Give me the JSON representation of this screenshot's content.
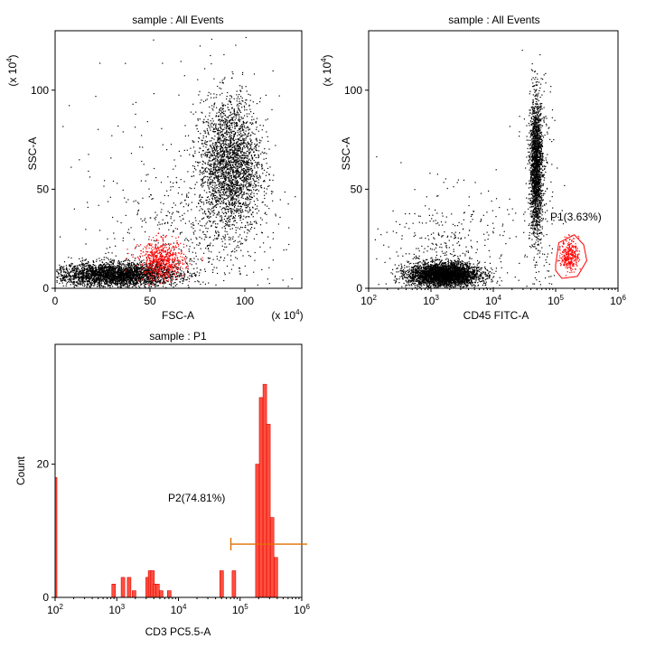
{
  "chart_data": [
    {
      "type": "scatter",
      "title": "sample : All Events",
      "xlabel": "FSC-A",
      "ylabel": "SSC-A",
      "x_scale": "linear",
      "xlim": [
        0,
        130
      ],
      "ylim": [
        0,
        130
      ],
      "x_multiplier": "(x 10",
      "y_multiplier": "(x 10",
      "multiplier_exp": "4",
      "multiplier_close": ")",
      "x_ticks": [
        {
          "v": 0,
          "label": "0"
        },
        {
          "v": 50,
          "label": "50"
        },
        {
          "v": 100,
          "label": "100"
        }
      ],
      "y_ticks": [
        {
          "v": 0,
          "label": "0"
        },
        {
          "v": 50,
          "label": "50"
        },
        {
          "v": 100,
          "label": "100"
        }
      ],
      "series": [
        {
          "name": "All Events",
          "color": "#000000"
        },
        {
          "name": "P1",
          "color": "#ff0000"
        }
      ],
      "populations": [
        {
          "series": 0,
          "count": 3200,
          "mx": 32,
          "sx": 16,
          "my": 7,
          "sy": 3
        },
        {
          "series": 0,
          "count": 2600,
          "mx": 92,
          "sx": 8,
          "my": 62,
          "sy": 17
        },
        {
          "series": 0,
          "count": 500,
          "mx": 70,
          "sx": 25,
          "my": 25,
          "sy": 20
        },
        {
          "series": 0,
          "count": 120,
          "mx": 65,
          "sx": 32,
          "my": 70,
          "sy": 35
        },
        {
          "series": 1,
          "count": 650,
          "mx": 56,
          "sx": 6,
          "my": 14,
          "sy": 5
        }
      ]
    },
    {
      "type": "scatter",
      "title": "sample : All Events",
      "xlabel": "CD45 FITC-A",
      "ylabel": "SSC-A",
      "x_scale": "log",
      "xlim": [
        2,
        6
      ],
      "ylim": [
        0,
        130
      ],
      "y_multiplier": "(x 10",
      "multiplier_exp": "4",
      "multiplier_close": ")",
      "x_ticks": [
        {
          "v": 2,
          "base": "10",
          "exp": "2"
        },
        {
          "v": 3,
          "base": "10",
          "exp": "3"
        },
        {
          "v": 4,
          "base": "10",
          "exp": "4"
        },
        {
          "v": 5,
          "base": "10",
          "exp": "5"
        },
        {
          "v": 6,
          "base": "10",
          "exp": "6"
        }
      ],
      "y_ticks": [
        {
          "v": 0,
          "label": "0"
        },
        {
          "v": 50,
          "label": "50"
        },
        {
          "v": 100,
          "label": "100"
        }
      ],
      "series": [
        {
          "name": "All Events",
          "color": "#000000"
        },
        {
          "name": "P1",
          "color": "#ff0000"
        }
      ],
      "populations": [
        {
          "series": 0,
          "count": 3600,
          "mx": 3.2,
          "sx": 0.28,
          "my": 7,
          "sy": 3
        },
        {
          "series": 0,
          "count": 1900,
          "mx": 4.68,
          "sx": 0.05,
          "my": 62,
          "sy": 17
        },
        {
          "series": 0,
          "count": 350,
          "mx": 3.3,
          "sx": 0.5,
          "my": 22,
          "sy": 14
        },
        {
          "series": 0,
          "count": 220,
          "mx": 4.75,
          "sx": 0.14,
          "my": 40,
          "sy": 35
        },
        {
          "series": 1,
          "count": 320,
          "mx": 5.22,
          "sx": 0.07,
          "my": 17,
          "sy": 4
        }
      ],
      "gate": {
        "name": "P1",
        "label": "P1(3.63%)",
        "percent": 3.63,
        "color": "#ff0000",
        "polygon": [
          [
            5.0,
            12
          ],
          [
            5.05,
            23
          ],
          [
            5.3,
            27
          ],
          [
            5.45,
            22
          ],
          [
            5.5,
            14
          ],
          [
            5.35,
            6
          ],
          [
            5.1,
            5
          ],
          [
            5.0,
            9
          ]
        ]
      }
    },
    {
      "type": "histogram",
      "title": "sample : P1",
      "xlabel": "CD3 PC5.5-A",
      "ylabel": "Count",
      "x_scale": "log",
      "xlim": [
        2,
        6
      ],
      "ylim": [
        0,
        38
      ],
      "x_ticks": [
        {
          "v": 2,
          "base": "10",
          "exp": "2"
        },
        {
          "v": 3,
          "base": "10",
          "exp": "3"
        },
        {
          "v": 4,
          "base": "10",
          "exp": "4"
        },
        {
          "v": 5,
          "base": "10",
          "exp": "5"
        },
        {
          "v": 6,
          "base": "10",
          "exp": "6"
        }
      ],
      "y_ticks": [
        {
          "v": 0,
          "label": "0"
        },
        {
          "v": 20,
          "label": "20"
        }
      ],
      "fill_color": "#ff5040",
      "edge_color": "#e00000",
      "bins": [
        {
          "x": 2.0,
          "c": 18
        },
        {
          "x": 2.95,
          "c": 2
        },
        {
          "x": 3.1,
          "c": 3
        },
        {
          "x": 3.2,
          "c": 3
        },
        {
          "x": 3.28,
          "c": 1
        },
        {
          "x": 3.5,
          "c": 3
        },
        {
          "x": 3.54,
          "c": 4
        },
        {
          "x": 3.58,
          "c": 4
        },
        {
          "x": 3.62,
          "c": 2
        },
        {
          "x": 3.66,
          "c": 2
        },
        {
          "x": 3.72,
          "c": 1
        },
        {
          "x": 3.85,
          "c": 1
        },
        {
          "x": 4.7,
          "c": 4
        },
        {
          "x": 4.9,
          "c": 4
        },
        {
          "x": 5.28,
          "c": 20
        },
        {
          "x": 5.34,
          "c": 30
        },
        {
          "x": 5.4,
          "c": 32
        },
        {
          "x": 5.46,
          "c": 26
        },
        {
          "x": 5.52,
          "c": 12
        },
        {
          "x": 5.58,
          "c": 6
        }
      ],
      "gate": {
        "name": "P2",
        "label": "P2(74.81%)",
        "percent": 74.81,
        "color": "#e07000",
        "x_start": 4.85,
        "x_end": 6.2,
        "y": 8
      }
    }
  ]
}
